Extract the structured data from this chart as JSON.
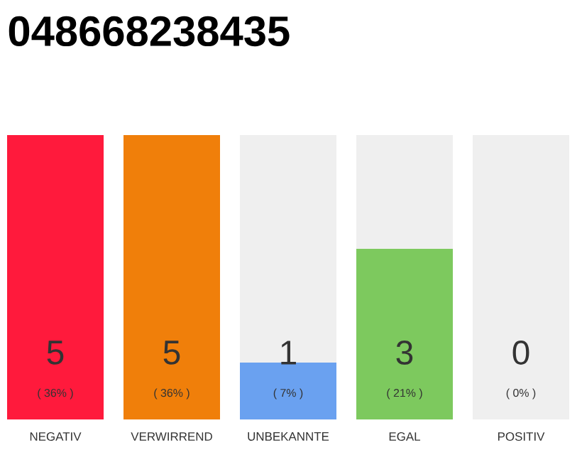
{
  "chart_data": {
    "type": "bar",
    "title": "048668238435",
    "stacked": true,
    "categories": [
      "NEGATIV",
      "VERWIRREND",
      "UNBEKANNTE",
      "EGAL",
      "POSITIV"
    ],
    "series": [
      {
        "values": [
          5,
          5,
          1,
          3,
          0
        ],
        "colors": [
          "#ff1a3c",
          "#f07f0a",
          "#6aa1f0",
          "#7dc95e",
          "#cccccc"
        ],
        "value_labels": [
          "5",
          "5",
          "1",
          "3",
          null
        ]
      },
      {
        "values": [
          0,
          0,
          4,
          2,
          5
        ],
        "color": "#efefef"
      }
    ],
    "annotations": [
      "( 36% )",
      "( 36% )",
      "( 7% )",
      "( 21% )",
      "( 0% )",
      {
        "text": "0",
        "x": "POSITIV",
        "y": 0
      }
    ]
  }
}
